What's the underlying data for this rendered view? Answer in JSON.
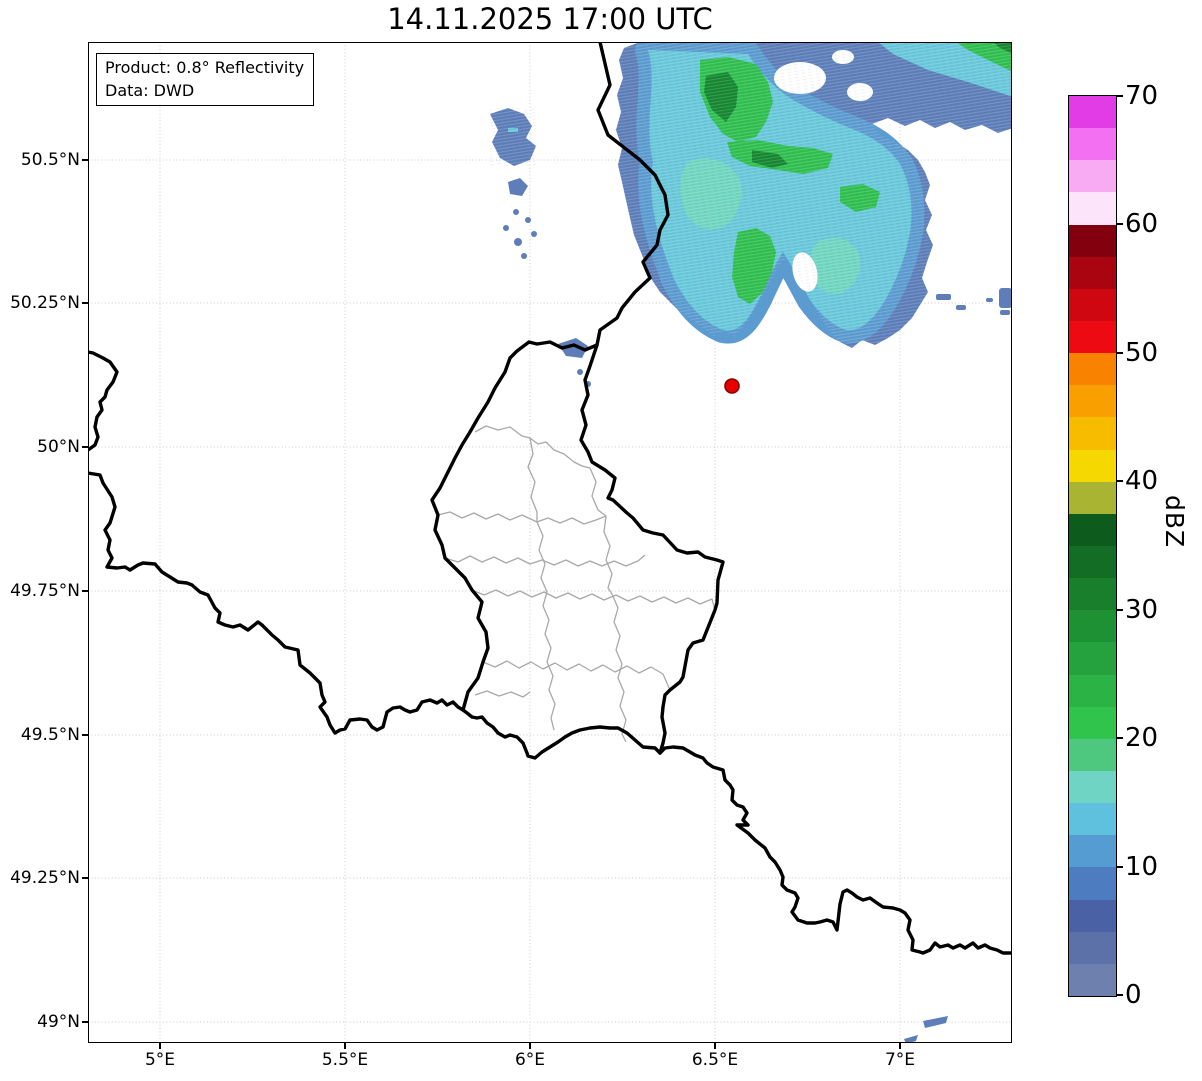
{
  "title": "14.11.2025 17:00 UTC",
  "annotation": {
    "product": "Product: 0.8° Reflectivity",
    "data_source": "Data: DWD"
  },
  "x_axis": {
    "ticks": [
      "5°E",
      "5.5°E",
      "6°E",
      "6.5°E",
      "7°E"
    ],
    "range_deg_east": [
      4.81,
      7.3
    ]
  },
  "y_axis": {
    "ticks": [
      "50.5°N",
      "50.25°N",
      "50°N",
      "49.75°N",
      "49.5°N",
      "49.25°N",
      "49°N"
    ],
    "range_deg_north": [
      48.96,
      50.71
    ]
  },
  "colorbar": {
    "label": "dBZ",
    "tick_labels": [
      "70",
      "60",
      "50",
      "40",
      "30",
      "20",
      "10",
      "0"
    ],
    "min_dbz": 0,
    "max_dbz": 70,
    "segment_step_dbz": 2.5,
    "colors_bottom_to_top": [
      "#6e80ae",
      "#5d71a9",
      "#4b61a5",
      "#4e7cc0",
      "#559cd2",
      "#60c1de",
      "#6fd4c4",
      "#4fc87f",
      "#30c44c",
      "#2bb445",
      "#25a23d",
      "#1f9135",
      "#197f2d",
      "#136d25",
      "#0d5b1d",
      "#a9b433",
      "#f5d800",
      "#f7bc00",
      "#f9a000",
      "#f98300",
      "#ee0a12",
      "#cf0711",
      "#a90410",
      "#83010e",
      "#fce4fb",
      "#f8aaf2",
      "#f470f2",
      "#e23ce6"
    ]
  },
  "marker": {
    "color": "#e60000",
    "lon_deg_east": 6.55,
    "lat_deg_north": 50.11
  },
  "map": {
    "countries_visible": [
      "Luxembourg",
      "Belgium",
      "Germany",
      "France"
    ],
    "country_border_color": "#000000",
    "district_border_color": "#a8a8a8",
    "grid_color": "#cccccc"
  },
  "radar_echoes": [
    {
      "area": "large precipitation field in NE quadrant crossing Belgium-Germany border",
      "lon_deg_east": [
        6.2,
        7.3
      ],
      "lat_deg_north": [
        50.2,
        50.7
      ],
      "intensity_dbz": [
        5,
        32
      ]
    },
    {
      "area": "diagonal band in far NE corner",
      "lon_deg_east": [
        7.0,
        7.3
      ],
      "lat_deg_north": [
        50.55,
        50.7
      ],
      "intensity_dbz": [
        5,
        28
      ]
    },
    {
      "area": "small weak cluster west of the border",
      "lon_deg_east": [
        5.88,
        6.05
      ],
      "lat_deg_north": [
        50.35,
        50.6
      ],
      "intensity_dbz": [
        5,
        12
      ]
    },
    {
      "area": "tiny specks near SE corner",
      "lon_deg_east": [
        7.05,
        7.15
      ],
      "lat_deg_north": [
        48.97,
        49.02
      ],
      "intensity_dbz": [
        5,
        10
      ]
    }
  ]
}
